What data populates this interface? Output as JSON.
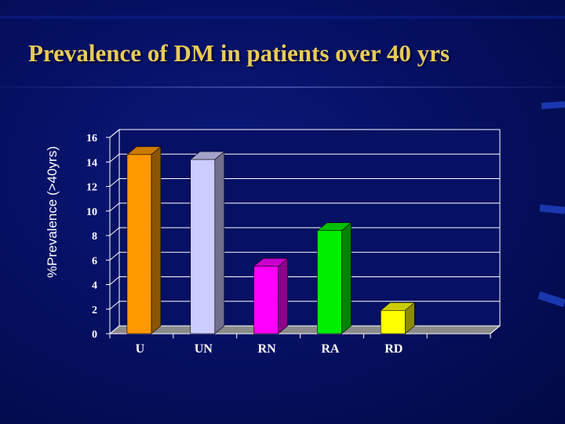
{
  "slide": {
    "title": "Prevalence of DM in patients over 40 yrs"
  },
  "chart_data": {
    "type": "bar",
    "title": "Prevalence of DM in patients over 40 yrs",
    "xlabel": "",
    "ylabel": "%Prevalence (>40yrs)",
    "categories": [
      "U",
      "UN",
      "RN",
      "RA",
      "RD"
    ],
    "values": [
      14.6,
      14.2,
      5.5,
      8.4,
      1.9
    ],
    "colors": [
      "#ff9900",
      "#ccccff",
      "#ff00ff",
      "#00ee00",
      "#ffff00"
    ],
    "ylim": [
      0,
      16
    ],
    "yticks": [
      0,
      2,
      4,
      6,
      8,
      10,
      12,
      14,
      16
    ],
    "grid": true,
    "legend": "none",
    "style": "3d-bars"
  },
  "colors": {
    "background": "#061064",
    "title": "#e8cc55",
    "plot_area": "#061064",
    "gridline": "#ffffff"
  }
}
